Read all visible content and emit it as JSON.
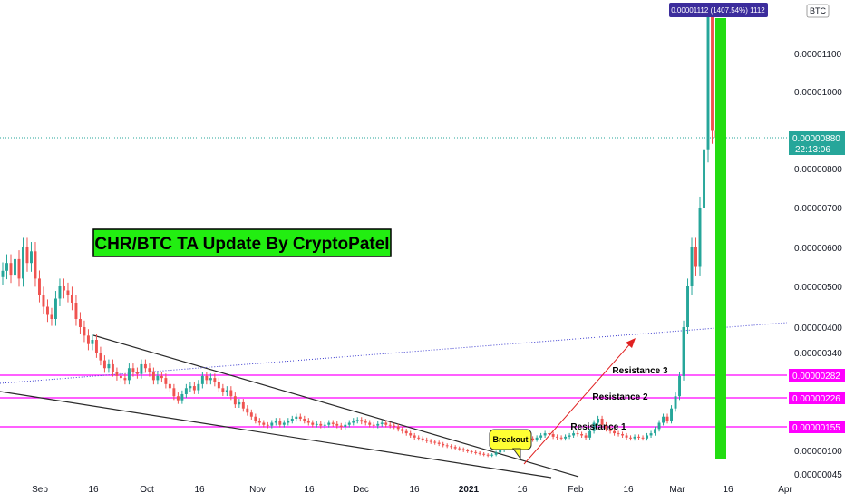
{
  "chart_data": {
    "type": "candlestick",
    "title": "CHR/BTC TA Update By CryptoPatel",
    "currency_label": "BTC",
    "y_ticks": [
      {
        "label": "0.00001100",
        "value": 1100
      },
      {
        "label": "0.00001000",
        "value": 1000
      },
      {
        "label": "0.00000800",
        "value": 800
      },
      {
        "label": "0.00000700",
        "value": 700
      },
      {
        "label": "0.00000600",
        "value": 600
      },
      {
        "label": "0.00000500",
        "value": 500
      },
      {
        "label": "0.00000400",
        "value": 400
      },
      {
        "label": "0.00000340",
        "value": 340
      },
      {
        "label": "0.00000100",
        "value": 100
      },
      {
        "label": "0.00000045",
        "value": 45
      }
    ],
    "x_ticks": [
      {
        "label": "Sep",
        "bold": false
      },
      {
        "label": "16",
        "bold": false
      },
      {
        "label": "Oct",
        "bold": false
      },
      {
        "label": "16",
        "bold": false
      },
      {
        "label": "Nov",
        "bold": false
      },
      {
        "label": "16",
        "bold": false
      },
      {
        "label": "Dec",
        "bold": false
      },
      {
        "label": "16",
        "bold": false
      },
      {
        "label": "2021",
        "bold": true
      },
      {
        "label": "16",
        "bold": false
      },
      {
        "label": "Feb",
        "bold": false
      },
      {
        "label": "16",
        "bold": false
      },
      {
        "label": "Mar",
        "bold": false
      },
      {
        "label": "16",
        "bold": false
      },
      {
        "label": "Apr",
        "bold": false
      }
    ],
    "resistance_levels": [
      {
        "name": "Resistance 1",
        "label": "0.00000155",
        "value": 155
      },
      {
        "name": "Resistance 2",
        "label": "0.00000226",
        "value": 226
      },
      {
        "name": "Resistance 3",
        "label": "0.00000282",
        "value": 282
      }
    ],
    "current_price": {
      "label": "0.00000880",
      "countdown": "22:13:06",
      "value": 880
    },
    "high_badge": "0.00001112 (1407.54%) 1112",
    "annotations": {
      "breakout": "Breakout"
    },
    "series": [
      {
        "values": [
          540,
          560,
          530,
          570,
          520,
          600,
          560,
          590,
          520,
          480,
          450,
          430,
          420,
          470,
          500,
          490,
          480,
          460,
          420,
          400,
          380,
          360,
          370,
          340,
          320,
          300,
          310,
          290,
          280,
          275,
          270,
          300,
          290,
          285,
          310,
          300,
          290,
          270,
          280,
          275,
          260,
          250,
          230,
          220,
          235,
          250,
          255,
          245,
          260,
          280,
          270,
          275,
          265,
          250,
          240,
          245,
          230,
          210,
          215,
          200,
          190,
          180,
          170,
          165,
          160,
          158,
          165,
          170,
          160,
          165,
          170,
          175,
          180,
          175,
          170,
          165,
          160,
          162,
          158,
          160,
          165,
          162,
          158,
          155,
          160,
          165,
          170,
          172,
          168,
          165,
          160,
          158,
          162,
          165,
          160,
          158,
          156,
          150,
          145,
          140,
          135,
          130,
          128,
          125,
          122,
          120,
          118,
          115,
          112,
          110,
          108,
          105,
          103,
          100,
          98,
          96,
          94,
          92,
          90,
          88,
          90,
          95,
          100,
          108,
          115,
          120,
          125,
          130,
          135,
          128,
          125,
          130,
          135,
          140,
          138,
          132,
          130,
          128,
          132,
          135,
          140,
          138,
          135,
          130,
          145,
          165,
          175,
          160,
          150,
          145,
          140,
          138,
          135,
          130,
          128,
          132,
          130,
          128,
          135,
          140,
          150,
          165,
          180,
          170,
          200,
          230,
          280,
          400,
          500,
          600,
          550,
          700,
          850,
          1112,
          900,
          880
        ]
      }
    ]
  }
}
